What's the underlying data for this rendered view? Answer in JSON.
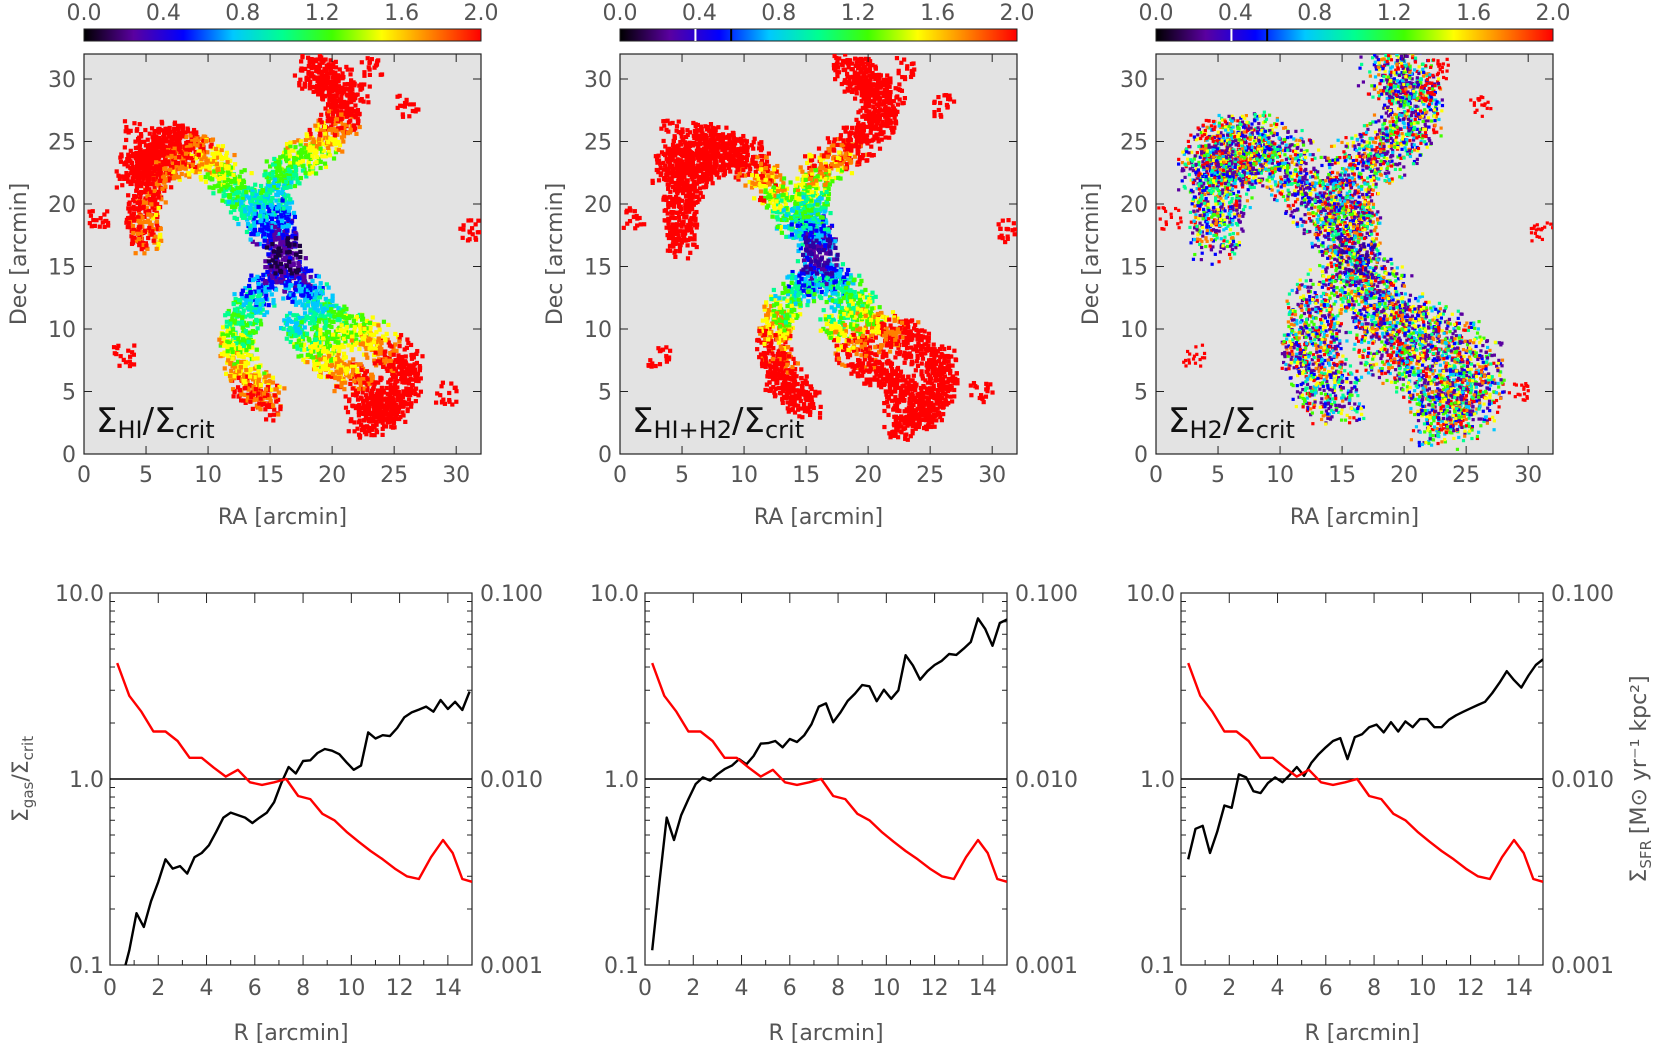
{
  "colors": {
    "map_background": "#e3e3e3",
    "model_curve": "#000000",
    "sfr_curve": "#ff0000",
    "reference_line": "#000000",
    "axis_text": "#555555",
    "colorbar_stops": [
      "#000000",
      "#5a00a0",
      "#0000ff",
      "#00c8ff",
      "#00ff90",
      "#40ff00",
      "#ffff00",
      "#ff8000",
      "#ff0000"
    ]
  },
  "colorbar": {
    "range": [
      0.0,
      2.0
    ],
    "tick_labels": [
      "0.0",
      "0.4",
      "0.8",
      "1.2",
      "1.6",
      "2.0"
    ],
    "tick_values": [
      0.0,
      0.4,
      0.8,
      1.2,
      1.6,
      2.0
    ]
  },
  "maps": [
    {
      "id": "hi",
      "label": {
        "main": "Σ",
        "sub1": "HI",
        "slash": "/Σ",
        "sub2": "crit"
      },
      "colorbar_has_markers": false
    },
    {
      "id": "hi-h2",
      "label": {
        "main": "Σ",
        "sub1": "HI+H2",
        "slash": "/Σ",
        "sub2": "crit"
      },
      "colorbar_has_markers": true
    },
    {
      "id": "h2",
      "label": {
        "main": "Σ",
        "sub1": "H2",
        "slash": "/Σ",
        "sub2": "crit"
      },
      "colorbar_has_markers": true
    }
  ],
  "map_axes": {
    "xlabel": "RA [arcmin]",
    "ylabel": "Dec [arcmin]",
    "xlim": [
      0,
      32
    ],
    "ylim": [
      0,
      32
    ],
    "x_ticks": [
      "0",
      "5",
      "10",
      "15",
      "20",
      "25",
      "30"
    ],
    "y_ticks": [
      "0",
      "5",
      "10",
      "15",
      "20",
      "25",
      "30"
    ]
  },
  "profile_axes": {
    "xlabel": "R [arcmin]",
    "ylabel_left": {
      "main": "Σ",
      "sub1": "gas",
      "mid": "/Σ",
      "sub2": "crit"
    },
    "ylabel_right": {
      "main": "Σ",
      "sub": "SFR",
      "units": "[M⊙ yr⁻¹ kpc²]"
    },
    "xlim": [
      0,
      15
    ],
    "ylim_left": [
      0.1,
      10.0
    ],
    "ylim_right": [
      0.001,
      0.1
    ],
    "x_ticks": [
      "0",
      "2",
      "4",
      "6",
      "8",
      "10",
      "12",
      "14"
    ],
    "y_ticks_left": [
      "0.1",
      "1.0",
      "10.0"
    ],
    "y_ticks_right": [
      "0.001",
      "0.010",
      "0.100"
    ],
    "yscale": "log",
    "reference_line": 1.0
  },
  "chart_data": [
    {
      "type": "heatmap",
      "panel": "top-left",
      "label": "ΣHI/Σcrit",
      "xlabel": "RA [arcmin]",
      "ylabel": "Dec [arcmin]",
      "xlim": [
        0,
        32
      ],
      "ylim": [
        0,
        32
      ],
      "color_range": [
        0.0,
        2.0
      ]
    },
    {
      "type": "heatmap",
      "panel": "top-middle",
      "label": "ΣHI+H2/Σcrit",
      "xlabel": "RA [arcmin]",
      "ylabel": "Dec [arcmin]",
      "xlim": [
        0,
        32
      ],
      "ylim": [
        0,
        32
      ],
      "color_range": [
        0.0,
        2.0
      ]
    },
    {
      "type": "heatmap",
      "panel": "top-right",
      "label": "ΣH2/Σcrit",
      "xlabel": "RA [arcmin]",
      "ylabel": "Dec [arcmin]",
      "xlim": [
        0,
        32
      ],
      "ylim": [
        0,
        32
      ],
      "color_range": [
        0.0,
        2.0
      ]
    },
    {
      "type": "line",
      "panel": "bottom-left",
      "xlabel": "R [arcmin]",
      "ylabel": "Σgas/Σcrit",
      "ylabel_right": "ΣSFR [M⊙ yr⁻¹ kpc²]",
      "yscale": "log",
      "xlim": [
        0,
        15
      ],
      "ylim": [
        0.1,
        10
      ],
      "ylim_right": [
        0.001,
        0.1
      ],
      "series": [
        {
          "axis": "left",
          "color": "#000000",
          "x": [
            0.5,
            0.8,
            1.1,
            1.4,
            1.7,
            2.0,
            2.3,
            2.6,
            2.9,
            3.2,
            3.5,
            3.8,
            4.1,
            4.4,
            4.7,
            5.0,
            5.3,
            5.6,
            5.9,
            6.2,
            6.5,
            6.8,
            7.1,
            7.4,
            7.7,
            8.0,
            8.3,
            8.6,
            8.9,
            9.2,
            9.5,
            9.8,
            10.1,
            10.4,
            10.7,
            11.0,
            11.3,
            11.6,
            11.9,
            12.2,
            12.5,
            12.8,
            13.1,
            13.4,
            13.7,
            14.0,
            14.3,
            14.6,
            14.9
          ],
          "y": [
            0.085,
            0.12,
            0.19,
            0.16,
            0.22,
            0.28,
            0.37,
            0.33,
            0.34,
            0.31,
            0.38,
            0.4,
            0.44,
            0.52,
            0.62,
            0.66,
            0.64,
            0.62,
            0.58,
            0.62,
            0.66,
            0.75,
            0.95,
            1.16,
            1.07,
            1.25,
            1.26,
            1.38,
            1.45,
            1.42,
            1.36,
            1.23,
            1.12,
            1.18,
            1.78,
            1.65,
            1.72,
            1.7,
            1.88,
            2.15,
            2.28,
            2.36,
            2.45,
            2.3,
            2.66,
            2.38,
            2.6,
            2.35,
            2.95
          ]
        },
        {
          "axis": "right",
          "color": "#ff0000",
          "x": [
            0.3,
            0.8,
            1.3,
            1.8,
            2.3,
            2.8,
            3.3,
            3.8,
            4.3,
            4.8,
            5.3,
            5.8,
            6.3,
            6.8,
            7.3,
            7.8,
            8.3,
            8.8,
            9.3,
            9.8,
            10.3,
            10.8,
            11.3,
            11.8,
            12.3,
            12.8,
            13.3,
            13.8,
            14.2,
            14.6,
            15.0
          ],
          "y": [
            0.042,
            0.028,
            0.023,
            0.018,
            0.018,
            0.016,
            0.013,
            0.013,
            0.0115,
            0.0103,
            0.0112,
            0.0096,
            0.0093,
            0.0096,
            0.01,
            0.0081,
            0.0078,
            0.0065,
            0.006,
            0.0052,
            0.0046,
            0.0041,
            0.0037,
            0.0033,
            0.003,
            0.0029,
            0.0038,
            0.0047,
            0.004,
            0.0029,
            0.0028
          ]
        }
      ]
    },
    {
      "type": "line",
      "panel": "bottom-middle",
      "xlabel": "R [arcmin]",
      "ylabel": "Σgas/Σcrit",
      "ylabel_right": "ΣSFR [M⊙ yr⁻¹ kpc²]",
      "yscale": "log",
      "xlim": [
        0,
        15
      ],
      "ylim": [
        0.1,
        10
      ],
      "ylim_right": [
        0.001,
        0.1
      ],
      "series": [
        {
          "axis": "left",
          "color": "#000000",
          "x": [
            0.3,
            0.6,
            0.9,
            1.2,
            1.5,
            1.8,
            2.1,
            2.4,
            2.7,
            3.0,
            3.3,
            3.6,
            3.9,
            4.2,
            4.5,
            4.8,
            5.1,
            5.4,
            5.7,
            6.0,
            6.3,
            6.6,
            6.9,
            7.2,
            7.5,
            7.8,
            8.1,
            8.4,
            8.7,
            9.0,
            9.3,
            9.6,
            9.9,
            10.2,
            10.5,
            10.8,
            11.1,
            11.4,
            11.7,
            12.0,
            12.3,
            12.6,
            12.9,
            13.2,
            13.5,
            13.8,
            14.1,
            14.4,
            14.7,
            15.0
          ],
          "y": [
            0.12,
            0.28,
            0.62,
            0.47,
            0.64,
            0.78,
            0.94,
            1.02,
            0.98,
            1.06,
            1.13,
            1.18,
            1.28,
            1.2,
            1.33,
            1.55,
            1.56,
            1.6,
            1.48,
            1.64,
            1.58,
            1.72,
            1.97,
            2.45,
            2.55,
            2.02,
            2.28,
            2.63,
            2.88,
            3.2,
            3.15,
            2.62,
            3.02,
            2.7,
            3.0,
            4.63,
            4.08,
            3.42,
            3.8,
            4.1,
            4.32,
            4.7,
            4.65,
            5.02,
            5.45,
            7.3,
            6.4,
            5.2,
            6.9,
            7.2
          ]
        },
        {
          "axis": "right",
          "color": "#ff0000",
          "x": [
            0.3,
            0.8,
            1.3,
            1.8,
            2.3,
            2.8,
            3.3,
            3.8,
            4.3,
            4.8,
            5.3,
            5.8,
            6.3,
            6.8,
            7.3,
            7.8,
            8.3,
            8.8,
            9.3,
            9.8,
            10.3,
            10.8,
            11.3,
            11.8,
            12.3,
            12.8,
            13.3,
            13.8,
            14.2,
            14.6,
            15.0
          ],
          "y": [
            0.042,
            0.028,
            0.023,
            0.018,
            0.018,
            0.016,
            0.013,
            0.013,
            0.0115,
            0.0103,
            0.0112,
            0.0096,
            0.0093,
            0.0096,
            0.01,
            0.0081,
            0.0078,
            0.0065,
            0.006,
            0.0052,
            0.0046,
            0.0041,
            0.0037,
            0.0033,
            0.003,
            0.0029,
            0.0038,
            0.0047,
            0.004,
            0.0029,
            0.0028
          ]
        }
      ]
    },
    {
      "type": "line",
      "panel": "bottom-right",
      "xlabel": "R [arcmin]",
      "ylabel": "Σgas/Σcrit",
      "ylabel_right": "ΣSFR [M⊙ yr⁻¹ kpc²]",
      "yscale": "log",
      "xlim": [
        0,
        15
      ],
      "ylim": [
        0.1,
        10
      ],
      "ylim_right": [
        0.001,
        0.1
      ],
      "series": [
        {
          "axis": "left",
          "color": "#000000",
          "x": [
            0.3,
            0.6,
            0.9,
            1.2,
            1.5,
            1.8,
            2.1,
            2.4,
            2.7,
            3.0,
            3.3,
            3.6,
            3.9,
            4.2,
            4.5,
            4.8,
            5.1,
            5.4,
            5.7,
            6.0,
            6.3,
            6.6,
            6.9,
            7.2,
            7.5,
            7.8,
            8.1,
            8.4,
            8.7,
            9.0,
            9.3,
            9.6,
            9.9,
            10.2,
            10.5,
            10.8,
            11.1,
            11.4,
            11.7,
            12.0,
            12.3,
            12.6,
            12.9,
            13.2,
            13.5,
            13.8,
            14.1,
            14.4,
            14.7,
            15.0
          ],
          "y": [
            0.37,
            0.54,
            0.56,
            0.4,
            0.52,
            0.72,
            0.7,
            1.06,
            1.02,
            0.86,
            0.84,
            0.95,
            1.02,
            0.96,
            1.05,
            1.16,
            1.04,
            1.22,
            1.36,
            1.48,
            1.6,
            1.66,
            1.28,
            1.68,
            1.74,
            1.9,
            1.96,
            1.78,
            2.02,
            1.8,
            2.04,
            1.9,
            2.1,
            2.1,
            1.9,
            1.9,
            2.08,
            2.2,
            2.3,
            2.4,
            2.5,
            2.6,
            2.9,
            3.3,
            3.8,
            3.4,
            3.1,
            3.6,
            4.1,
            4.4
          ]
        },
        {
          "axis": "right",
          "color": "#ff0000",
          "x": [
            0.3,
            0.8,
            1.3,
            1.8,
            2.3,
            2.8,
            3.3,
            3.8,
            4.3,
            4.8,
            5.3,
            5.8,
            6.3,
            6.8,
            7.3,
            7.8,
            8.3,
            8.8,
            9.3,
            9.8,
            10.3,
            10.8,
            11.3,
            11.8,
            12.3,
            12.8,
            13.3,
            13.8,
            14.2,
            14.6,
            15.0
          ],
          "y": [
            0.042,
            0.028,
            0.023,
            0.018,
            0.018,
            0.016,
            0.013,
            0.013,
            0.0115,
            0.0103,
            0.0112,
            0.0096,
            0.0093,
            0.0096,
            0.01,
            0.0081,
            0.0078,
            0.0065,
            0.006,
            0.0052,
            0.0046,
            0.0041,
            0.0037,
            0.0033,
            0.003,
            0.0029,
            0.0038,
            0.0047,
            0.004,
            0.0029,
            0.0028
          ]
        }
      ]
    }
  ]
}
